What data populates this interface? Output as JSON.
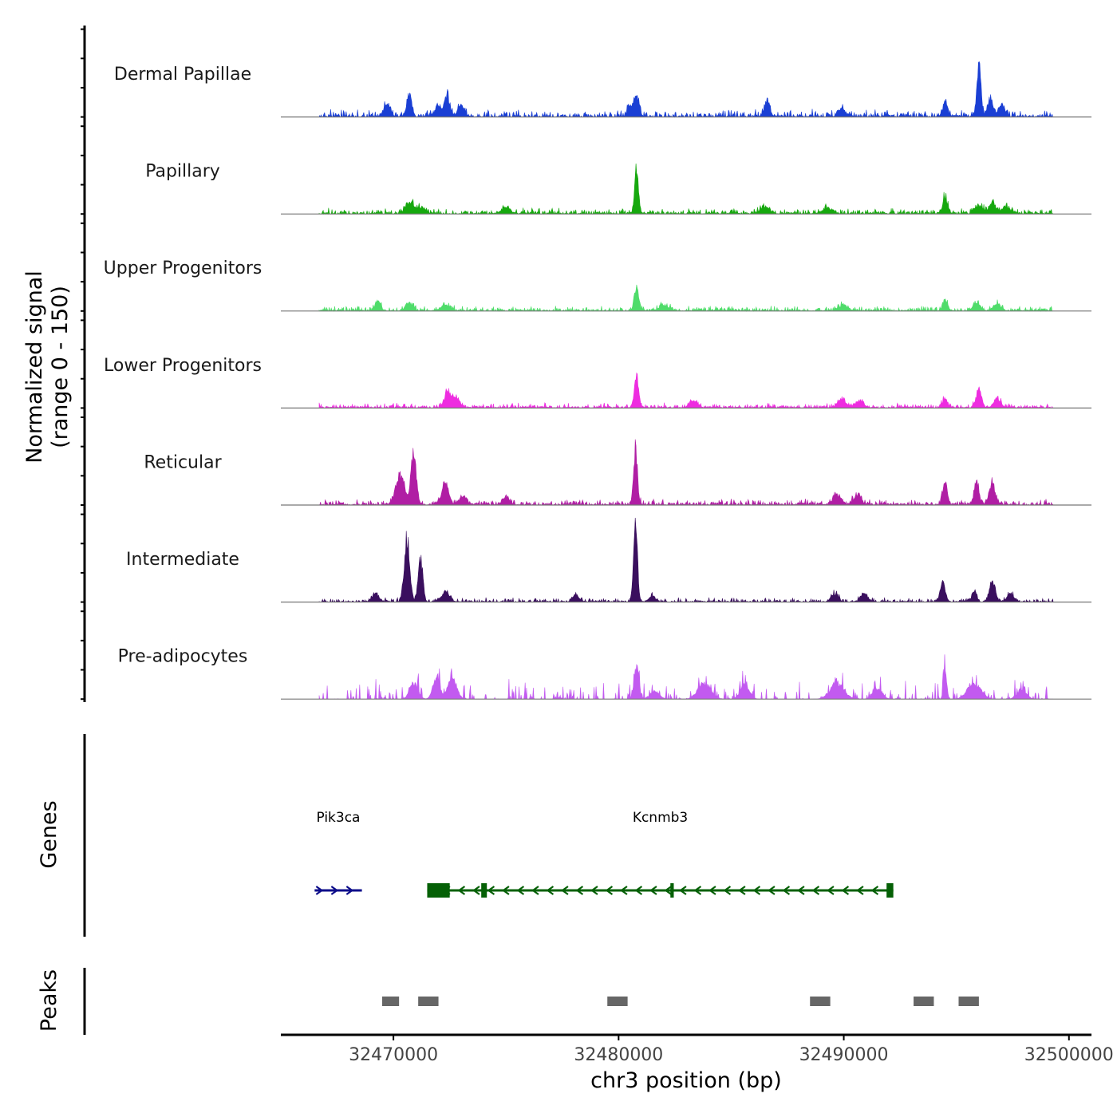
{
  "chart_data": {
    "type": "area",
    "title": "",
    "chromosome": "chr3",
    "xlabel": "chr3 position (bp)",
    "ylabel": [
      "Normalized signal",
      "(range 0 - 150)"
    ],
    "xlim": [
      32465000,
      32501000
    ],
    "ylim": [
      0,
      150
    ],
    "x_ticks": [
      32470000,
      32480000,
      32490000,
      32500000
    ],
    "x_tick_labels": [
      "32470000",
      "32480000",
      "32490000",
      "32500000"
    ],
    "series": [
      {
        "name": "Dermal Papillae",
        "color": "#1a3fd4",
        "data_start": 32466700,
        "data_end": 32499300,
        "noise": 10,
        "fill": 0.9,
        "seed": 11,
        "peaks": [
          [
            32469700,
            22,
            150
          ],
          [
            32470700,
            40,
            110
          ],
          [
            32472000,
            20,
            150
          ],
          [
            32472400,
            35,
            110
          ],
          [
            32473000,
            18,
            150
          ],
          [
            32480500,
            18,
            120
          ],
          [
            32480800,
            38,
            110
          ],
          [
            32486600,
            30,
            120
          ],
          [
            32489900,
            15,
            150
          ],
          [
            32494500,
            25,
            110
          ],
          [
            32496000,
            88,
            90
          ],
          [
            32496500,
            30,
            110
          ],
          [
            32497000,
            22,
            140
          ]
        ]
      },
      {
        "name": "Papillary",
        "color": "#16a80e",
        "data_start": 32466700,
        "data_end": 32499300,
        "noise": 8,
        "fill": 1.0,
        "seed": 23,
        "peaks": [
          [
            32470700,
            20,
            180
          ],
          [
            32471200,
            10,
            200
          ],
          [
            32475000,
            10,
            200
          ],
          [
            32480800,
            80,
            85
          ],
          [
            32486500,
            12,
            200
          ],
          [
            32489300,
            10,
            200
          ],
          [
            32494500,
            30,
            110
          ],
          [
            32496000,
            14,
            150
          ],
          [
            32496600,
            20,
            150
          ],
          [
            32497200,
            14,
            150
          ]
        ]
      },
      {
        "name": "Upper Progenitors",
        "color": "#4fdc6a",
        "data_start": 32466700,
        "data_end": 32499300,
        "noise": 7,
        "fill": 1.0,
        "seed": 37,
        "peaks": [
          [
            32469300,
            20,
            110
          ],
          [
            32470700,
            14,
            160
          ],
          [
            32472300,
            10,
            200
          ],
          [
            32480800,
            40,
            100
          ],
          [
            32482000,
            10,
            200
          ],
          [
            32490000,
            10,
            200
          ],
          [
            32494500,
            20,
            110
          ],
          [
            32495900,
            12,
            160
          ],
          [
            32496800,
            12,
            160
          ]
        ]
      },
      {
        "name": "Lower Progenitors",
        "color": "#ee2ce0",
        "data_start": 32466700,
        "data_end": 32499300,
        "noise": 7,
        "fill": 1.0,
        "seed": 41,
        "peaks": [
          [
            32472400,
            30,
            130
          ],
          [
            32472800,
            18,
            150
          ],
          [
            32480800,
            55,
            95
          ],
          [
            32483300,
            14,
            160
          ],
          [
            32489900,
            16,
            180
          ],
          [
            32490700,
            12,
            180
          ],
          [
            32494500,
            14,
            130
          ],
          [
            32496000,
            32,
            120
          ],
          [
            32496800,
            16,
            150
          ]
        ]
      },
      {
        "name": "Reticular",
        "color": "#b01ea4",
        "data_start": 32466700,
        "data_end": 32499300,
        "noise": 8,
        "fill": 1.0,
        "seed": 53,
        "peaks": [
          [
            32470300,
            52,
            200
          ],
          [
            32470900,
            90,
            120
          ],
          [
            32472300,
            38,
            150
          ],
          [
            32473100,
            18,
            150
          ],
          [
            32475000,
            14,
            150
          ],
          [
            32480750,
            100,
            85
          ],
          [
            32489700,
            16,
            200
          ],
          [
            32490600,
            18,
            150
          ],
          [
            32494500,
            40,
            100
          ],
          [
            32495900,
            40,
            110
          ],
          [
            32496600,
            38,
            120
          ]
        ]
      },
      {
        "name": "Intermediate",
        "color": "#3a0f5e",
        "data_start": 32466700,
        "data_end": 32499300,
        "noise": 6,
        "fill": 1.0,
        "seed": 67,
        "peaks": [
          [
            32469200,
            14,
            150
          ],
          [
            32470600,
            115,
            120
          ],
          [
            32471200,
            80,
            100
          ],
          [
            32472300,
            18,
            180
          ],
          [
            32478100,
            12,
            130
          ],
          [
            32480750,
            150,
            85
          ],
          [
            32481500,
            10,
            150
          ],
          [
            32489600,
            14,
            150
          ],
          [
            32490900,
            16,
            150
          ],
          [
            32494400,
            38,
            110
          ],
          [
            32495800,
            20,
            100
          ],
          [
            32496600,
            40,
            120
          ],
          [
            32497400,
            14,
            150
          ]
        ]
      },
      {
        "name": "Pre-adipocytes",
        "color": "#c25af0",
        "data_start": 32466700,
        "data_end": 32499300,
        "noise": 25,
        "fill": 0.32,
        "seed": 79,
        "peaks": [
          [
            32470900,
            30,
            180
          ],
          [
            32471900,
            40,
            150
          ],
          [
            32472600,
            40,
            200
          ],
          [
            32480800,
            55,
            110
          ],
          [
            32481600,
            15,
            200
          ],
          [
            32483800,
            30,
            280
          ],
          [
            32485600,
            25,
            200
          ],
          [
            32489700,
            30,
            300
          ],
          [
            32491500,
            20,
            200
          ],
          [
            32494500,
            55,
            70
          ],
          [
            32495800,
            28,
            300
          ],
          [
            32497900,
            18,
            200
          ]
        ]
      }
    ],
    "genes": [
      {
        "name": "Pik3ca",
        "strand": "+",
        "start": 32466500,
        "end": 32468600,
        "color": "#0d0d8a",
        "exons": []
      },
      {
        "name": "Kcnmb3",
        "strand": "-",
        "start": 32471500,
        "end": 32492200,
        "color": "#056006",
        "exons": [
          [
            32471500,
            32472500
          ],
          [
            32473900,
            32474150
          ],
          [
            32482300,
            32482450
          ],
          [
            32491900,
            32492200
          ]
        ]
      }
    ],
    "peaks": [
      [
        32469500,
        32470250
      ],
      [
        32471100,
        32472000
      ],
      [
        32479500,
        32480400
      ],
      [
        32488500,
        32489400
      ],
      [
        32493100,
        32494000
      ],
      [
        32495100,
        32496000
      ]
    ],
    "track_labels": {
      "genes": "Genes",
      "peaks": "Peaks"
    }
  }
}
